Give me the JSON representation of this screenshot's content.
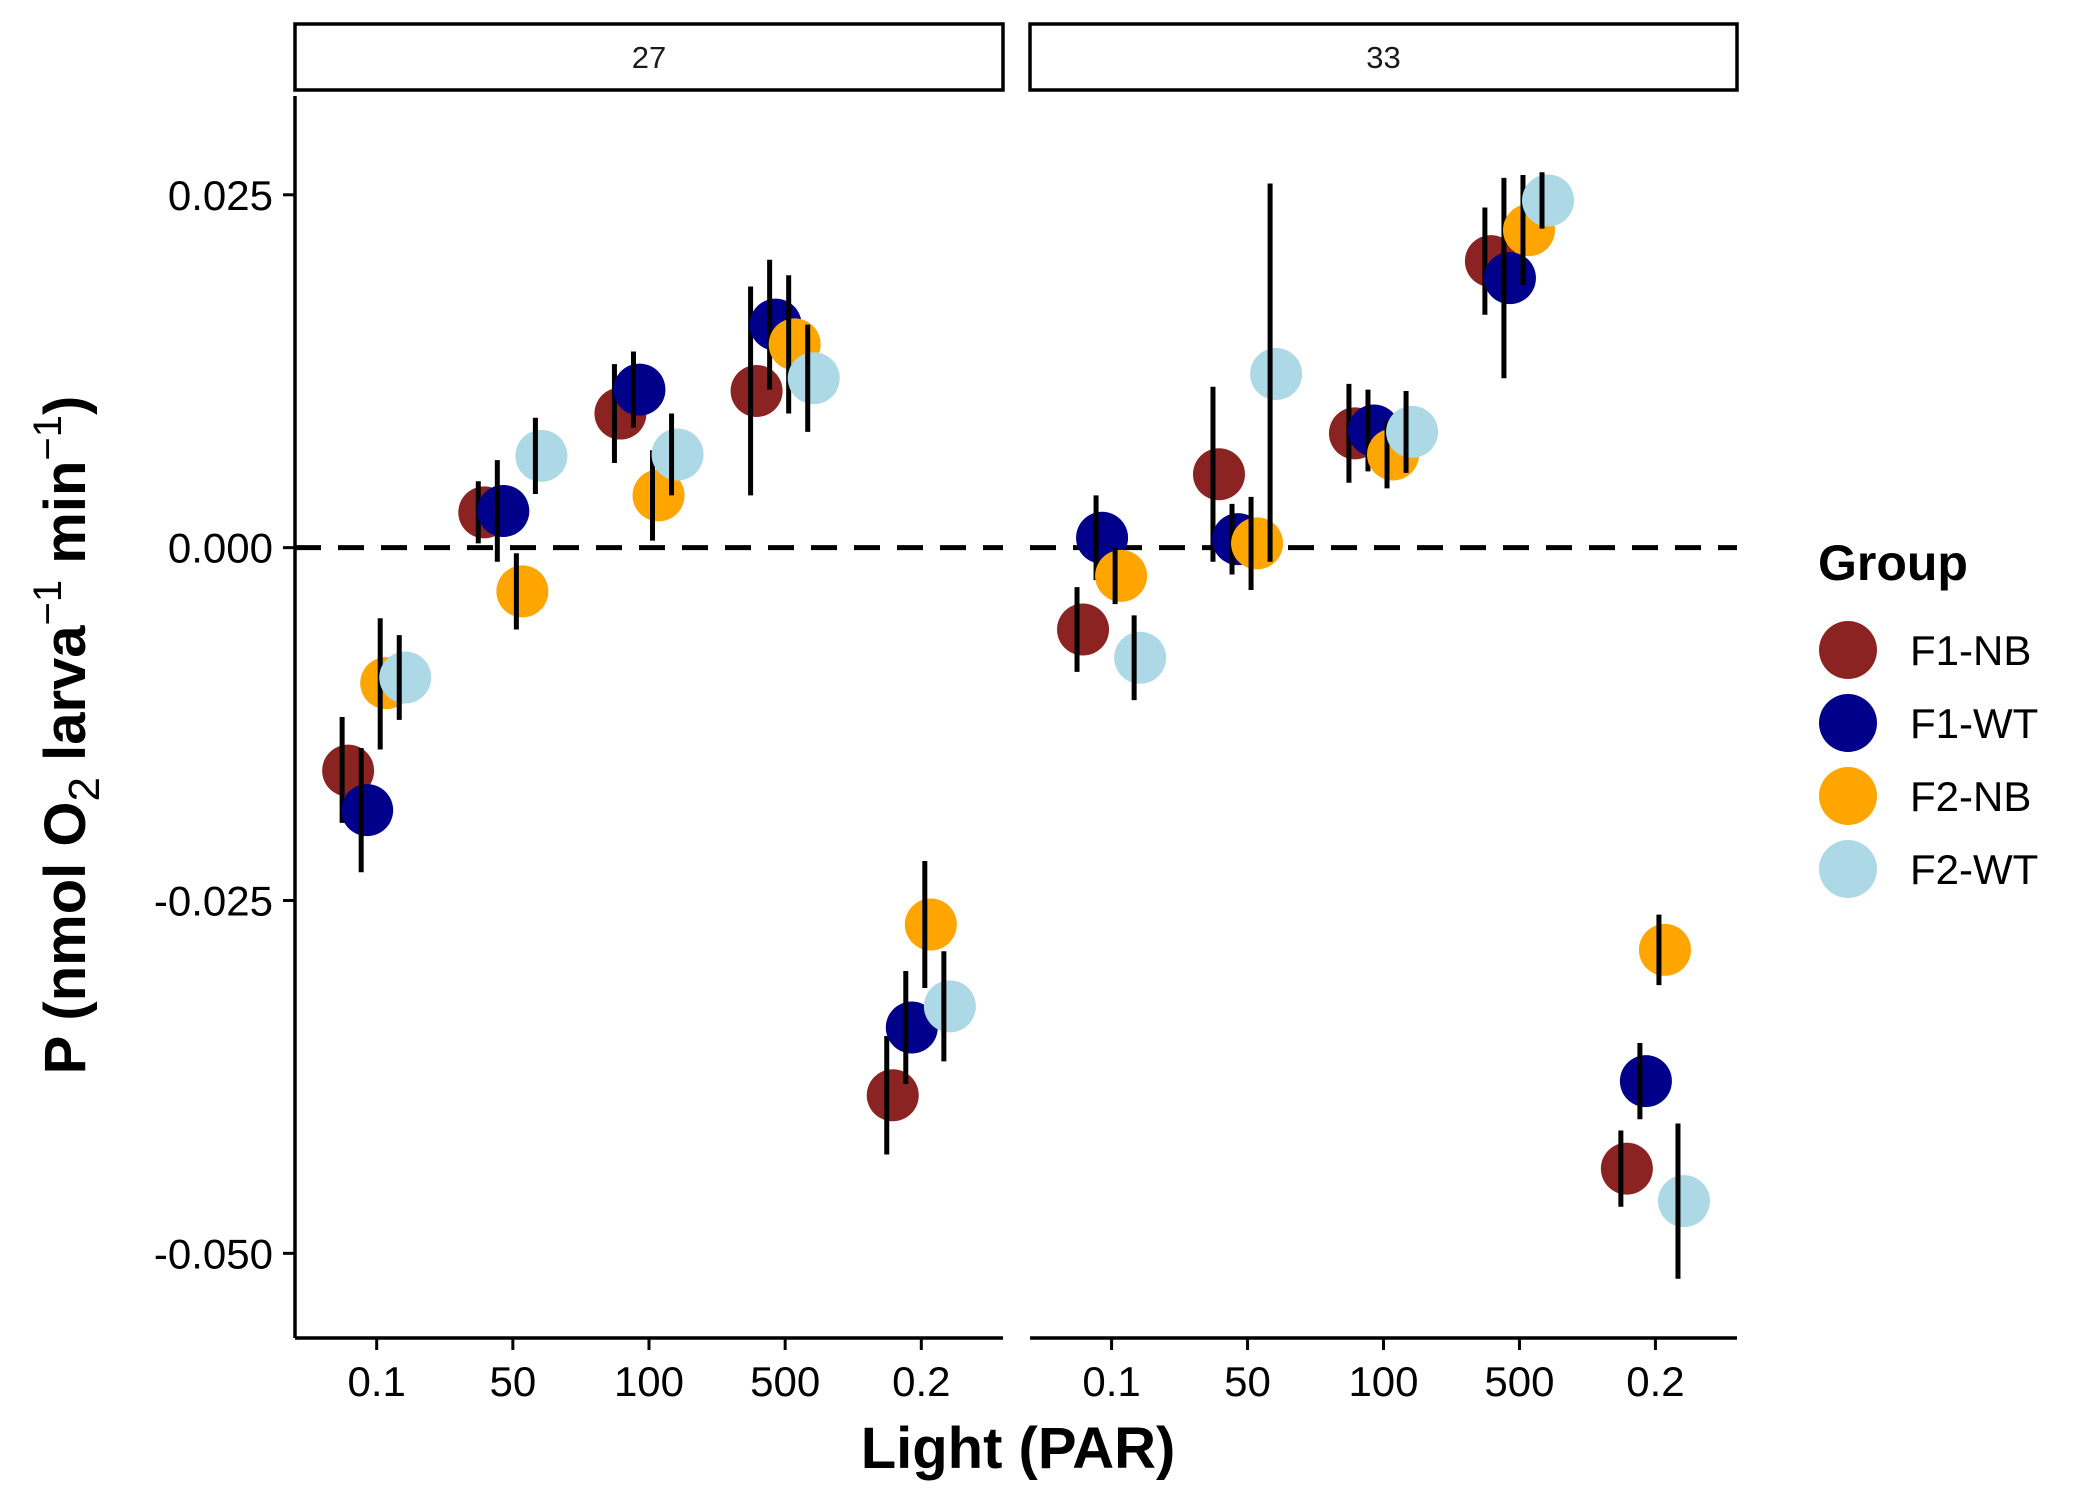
{
  "chart_data": {
    "type": "scatter",
    "xlabel": "Light (PAR)",
    "ylabel": {
      "base": "P (nmol O",
      "sub": "2",
      "mid1": " larva",
      "sup1": "−1",
      "mid2": " min",
      "sup2": "−1",
      "end": ")"
    },
    "categories": [
      "0.1",
      "50",
      "100",
      "500",
      "0.2"
    ],
    "ylim": [
      -0.056,
      0.032
    ],
    "yticks": [
      0.025,
      0.0,
      -0.025,
      -0.05
    ],
    "ytick_labels": [
      "0.025",
      "0.000",
      "-0.025",
      "-0.050"
    ],
    "reference_line": {
      "y": 0,
      "style": "dashed"
    },
    "legend": {
      "title": "Group",
      "position": "right"
    },
    "groups": [
      {
        "name": "F1-NB",
        "color": "#8B2323"
      },
      {
        "name": "F1-WT",
        "color": "#00008B"
      },
      {
        "name": "F2-NB",
        "color": "#FFA500"
      },
      {
        "name": "F2-WT",
        "color": "#ADD8E6"
      }
    ],
    "panels": [
      {
        "label": "27",
        "series": [
          {
            "name": "F1-NB",
            "values": [
              -0.0158,
              0.0025,
              0.0095,
              0.0111,
              -0.0388
            ],
            "lower": [
              -0.0195,
              0.0003,
              0.006,
              0.0037,
              -0.043
            ],
            "upper": [
              -0.012,
              0.0047,
              0.013,
              0.0185,
              -0.0346
            ]
          },
          {
            "name": "F1-WT",
            "values": [
              -0.0186,
              0.0026,
              0.0112,
              0.0158,
              -0.034
            ],
            "lower": [
              -0.023,
              -0.001,
              0.0085,
              0.0112,
              -0.038
            ],
            "upper": [
              -0.0142,
              0.0062,
              0.0139,
              0.0204,
              -0.03
            ]
          },
          {
            "name": "F2-NB",
            "values": [
              -0.0096,
              -0.0031,
              0.0037,
              0.0144,
              -0.0267
            ],
            "lower": [
              -0.0143,
              -0.0058,
              0.0005,
              0.0095,
              -0.0312
            ],
            "upper": [
              -0.005,
              -0.0004,
              0.0069,
              0.0193,
              -0.0222
            ]
          },
          {
            "name": "F2-WT",
            "values": [
              -0.0092,
              0.0065,
              0.0066,
              0.012,
              -0.0325
            ],
            "lower": [
              -0.0122,
              0.0038,
              0.0037,
              0.0082,
              -0.0364
            ],
            "upper": [
              -0.0062,
              0.0092,
              0.0095,
              0.0158,
              -0.0286
            ]
          }
        ]
      },
      {
        "label": "33",
        "series": [
          {
            "name": "F1-NB",
            "values": [
              -0.0058,
              0.0052,
              0.0081,
              0.0203,
              -0.044
            ],
            "lower": [
              -0.0088,
              -0.001,
              0.0046,
              0.0165,
              -0.0467
            ],
            "upper": [
              -0.0028,
              0.0114,
              0.0116,
              0.0241,
              -0.0413
            ]
          },
          {
            "name": "F1-WT",
            "values": [
              0.0007,
              0.0006,
              0.0083,
              0.0191,
              -0.0378
            ],
            "lower": [
              -0.0023,
              -0.0019,
              0.0054,
              0.012,
              -0.0405
            ],
            "upper": [
              0.0037,
              0.0031,
              0.0112,
              0.0262,
              -0.0351
            ]
          },
          {
            "name": "F2-NB",
            "values": [
              -0.002,
              0.0003,
              0.0066,
              0.0225,
              -0.0285
            ],
            "lower": [
              -0.004,
              -0.003,
              0.0042,
              0.0186,
              -0.031
            ],
            "upper": [
              0.0,
              0.0036,
              0.009,
              0.0264,
              -0.026
            ]
          },
          {
            "name": "F2-WT",
            "values": [
              -0.0078,
              0.0123,
              0.0082,
              0.0246,
              -0.0463
            ],
            "lower": [
              -0.0108,
              -0.001,
              0.0053,
              0.0226,
              -0.0518
            ],
            "upper": [
              -0.0048,
              0.0258,
              0.0111,
              0.0266,
              -0.0408
            ]
          }
        ]
      }
    ]
  }
}
